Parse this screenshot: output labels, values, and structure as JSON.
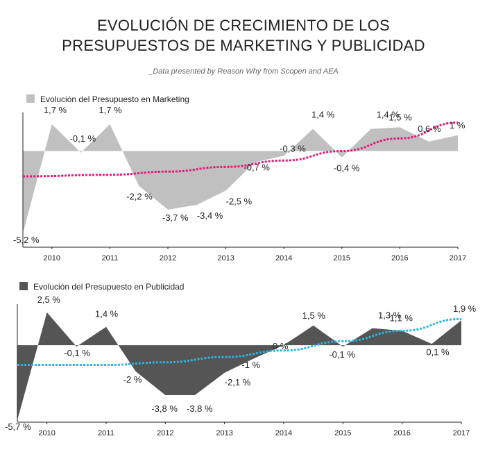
{
  "title_line1": "EVOLUCIÓN DE CRECIMIENTO DE LOS",
  "title_line2": "PRESUPUESTOS DE MARKETING Y PUBLICIDAD",
  "subtitle": "_Data presented by Reason Why from Scopen and AEA",
  "chart_data": [
    {
      "type": "area",
      "legend": "Evolución del Presupuesto en Marketing",
      "area_color": "#c0c0c0",
      "trend_color": "#e6177a",
      "x_ticks": [
        "2010",
        "2011",
        "2012",
        "2013",
        "2014",
        "2015",
        "2016",
        "2017"
      ],
      "points": [
        {
          "x": 2009.5,
          "y": -5.2,
          "label": "-5,2 %"
        },
        {
          "x": 2010.0,
          "y": 1.7,
          "label": "1,7 %"
        },
        {
          "x": 2010.5,
          "y": -0.1,
          "label": "-0,1 %"
        },
        {
          "x": 2011.0,
          "y": 1.7,
          "label": "1,7 %"
        },
        {
          "x": 2011.5,
          "y": -2.2,
          "label": "-2,2 %"
        },
        {
          "x": 2012.0,
          "y": -3.7,
          "label": "-3,7 %"
        },
        {
          "x": 2012.5,
          "y": -3.4,
          "label": "-3,4 %"
        },
        {
          "x": 2013.0,
          "y": -2.5,
          "label": "-2,5 %"
        },
        {
          "x": 2013.5,
          "y": -0.7,
          "label": "-0,7 %"
        },
        {
          "x": 2014.0,
          "y": -0.3,
          "label": "-0,3 %"
        },
        {
          "x": 2014.5,
          "y": 1.4,
          "label": "1,4 %"
        },
        {
          "x": 2015.0,
          "y": -0.4,
          "label": "-0,4 %"
        },
        {
          "x": 2015.5,
          "y": 1.4,
          "label": "1,4 %"
        },
        {
          "x": 2016.0,
          "y": 1.5,
          "label": "1,5 %"
        },
        {
          "x": 2016.5,
          "y": 0.6,
          "label": "0,6 %"
        },
        {
          "x": 2017.0,
          "y": 1.0,
          "label": "1 %"
        }
      ],
      "trend": [
        {
          "x": 2009.5,
          "y": -1.6
        },
        {
          "x": 2011.0,
          "y": -1.5
        },
        {
          "x": 2012.0,
          "y": -1.3
        },
        {
          "x": 2013.0,
          "y": -1.0
        },
        {
          "x": 2014.0,
          "y": -0.6
        },
        {
          "x": 2015.0,
          "y": 0.0
        },
        {
          "x": 2016.0,
          "y": 0.8
        },
        {
          "x": 2017.0,
          "y": 1.8
        }
      ],
      "xlim": [
        2009.5,
        2017.0
      ],
      "ylim": [
        -5.2,
        2.0
      ]
    },
    {
      "type": "area",
      "legend": "Evolución del Presupuesto en Publicidad",
      "area_color": "#555555",
      "trend_color": "#29b6e0",
      "x_ticks": [
        "2010",
        "2011",
        "2012",
        "2013",
        "2014",
        "2015",
        "2016",
        "2017"
      ],
      "points": [
        {
          "x": 2009.5,
          "y": -5.7,
          "label": "-5,7 %"
        },
        {
          "x": 2010.0,
          "y": 2.5,
          "label": "2,5 %"
        },
        {
          "x": 2010.5,
          "y": -0.1,
          "label": "-0,1 %"
        },
        {
          "x": 2011.0,
          "y": 1.4,
          "label": "1,4 %"
        },
        {
          "x": 2011.5,
          "y": -2.0,
          "label": "-2 %"
        },
        {
          "x": 2012.0,
          "y": -3.8,
          "label": "-3,8 %"
        },
        {
          "x": 2012.5,
          "y": -3.8,
          "label": "-3,8 %"
        },
        {
          "x": 2013.0,
          "y": -2.1,
          "label": "-2,1 %"
        },
        {
          "x": 2013.5,
          "y": -1.0,
          "label": "-1 %"
        },
        {
          "x": 2014.0,
          "y": 0.0,
          "label": "0 %"
        },
        {
          "x": 2014.5,
          "y": 1.5,
          "label": "1,5 %"
        },
        {
          "x": 2015.0,
          "y": -0.1,
          "label": "-0,1 %"
        },
        {
          "x": 2015.5,
          "y": 1.3,
          "label": "1,3 %"
        },
        {
          "x": 2016.0,
          "y": 1.1,
          "label": "1,1 %"
        },
        {
          "x": 2016.5,
          "y": 0.1,
          "label": "0,1 %"
        },
        {
          "x": 2017.0,
          "y": 1.9,
          "label": "1,9 %"
        }
      ],
      "trend": [
        {
          "x": 2009.5,
          "y": -1.5
        },
        {
          "x": 2011.0,
          "y": -1.5
        },
        {
          "x": 2012.0,
          "y": -1.3
        },
        {
          "x": 2013.0,
          "y": -0.9
        },
        {
          "x": 2014.0,
          "y": -0.4
        },
        {
          "x": 2015.0,
          "y": 0.3
        },
        {
          "x": 2016.0,
          "y": 1.1
        },
        {
          "x": 2017.0,
          "y": 2.0
        }
      ],
      "xlim": [
        2009.5,
        2017.0
      ],
      "ylim": [
        -5.7,
        2.6
      ]
    }
  ]
}
